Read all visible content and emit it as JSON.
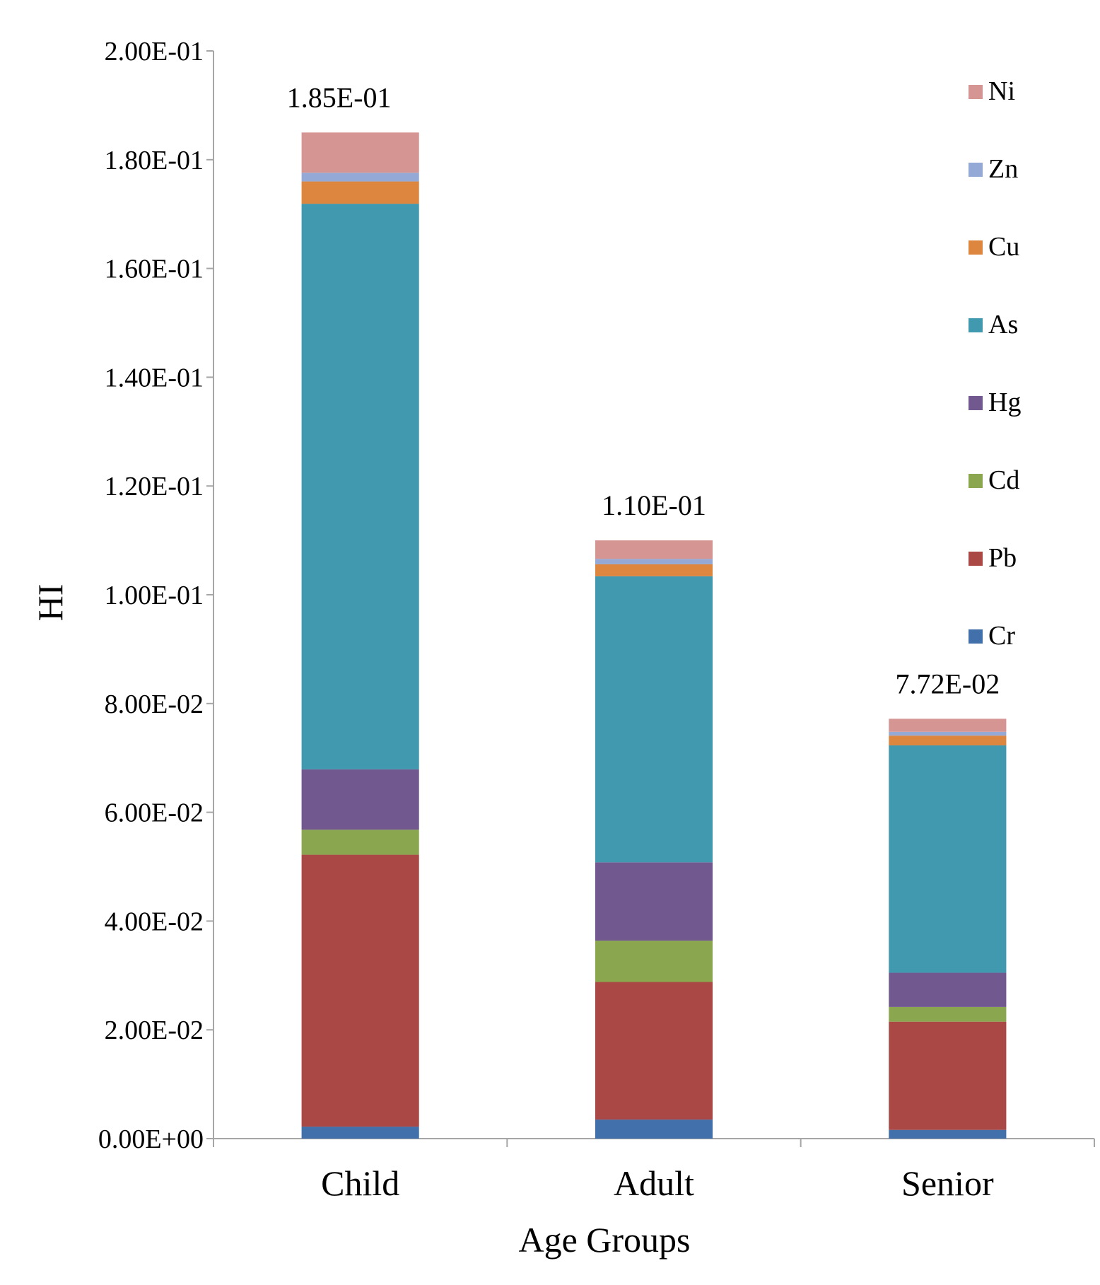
{
  "chart_data": {
    "type": "bar",
    "stacked": true,
    "title": "",
    "xlabel": "Age Groups",
    "ylabel": "HI",
    "ylim": [
      0,
      0.2
    ],
    "categories": [
      "Child",
      "Adult",
      "Senior"
    ],
    "y_ticks": [
      {
        "value": 0,
        "label": "0.00E+00"
      },
      {
        "value": 0.02,
        "label": "2.00E-02"
      },
      {
        "value": 0.04,
        "label": "4.00E-02"
      },
      {
        "value": 0.06,
        "label": "6.00E-02"
      },
      {
        "value": 0.08,
        "label": "8.00E-02"
      },
      {
        "value": 0.1,
        "label": "1.00E-01"
      },
      {
        "value": 0.12,
        "label": "1.20E-01"
      },
      {
        "value": 0.14,
        "label": "1.40E-01"
      },
      {
        "value": 0.16,
        "label": "1.60E-01"
      },
      {
        "value": 0.18,
        "label": "1.80E-01"
      },
      {
        "value": 0.2,
        "label": "2.00E-01"
      }
    ],
    "series": [
      {
        "name": "Cr",
        "color": "#4170ab",
        "values": [
          0.0022,
          0.0035,
          0.0016
        ]
      },
      {
        "name": "Pb",
        "color": "#aa4846",
        "values": [
          0.05,
          0.0253,
          0.0199
        ]
      },
      {
        "name": "Cd",
        "color": "#8aa64e",
        "values": [
          0.0046,
          0.0076,
          0.0027
        ]
      },
      {
        "name": "Hg",
        "color": "#71598f",
        "values": [
          0.0111,
          0.0144,
          0.0063
        ]
      },
      {
        "name": "As",
        "color": "#4199b0",
        "values": [
          0.104,
          0.0526,
          0.0418
        ]
      },
      {
        "name": "Cu",
        "color": "#dd8640",
        "values": [
          0.0041,
          0.0022,
          0.0018
        ]
      },
      {
        "name": "Zn",
        "color": "#94a9d5",
        "values": [
          0.0016,
          0.001,
          0.0007
        ]
      },
      {
        "name": "Ni",
        "color": "#d59593",
        "values": [
          0.0074,
          0.0034,
          0.0024
        ]
      }
    ],
    "totals": [
      {
        "value": 0.185,
        "label": "1.85E-01"
      },
      {
        "value": 0.11,
        "label": "1.10E-01"
      },
      {
        "value": 0.0772,
        "label": "7.72E-02"
      }
    ],
    "legend_position": "right",
    "grid": false
  }
}
